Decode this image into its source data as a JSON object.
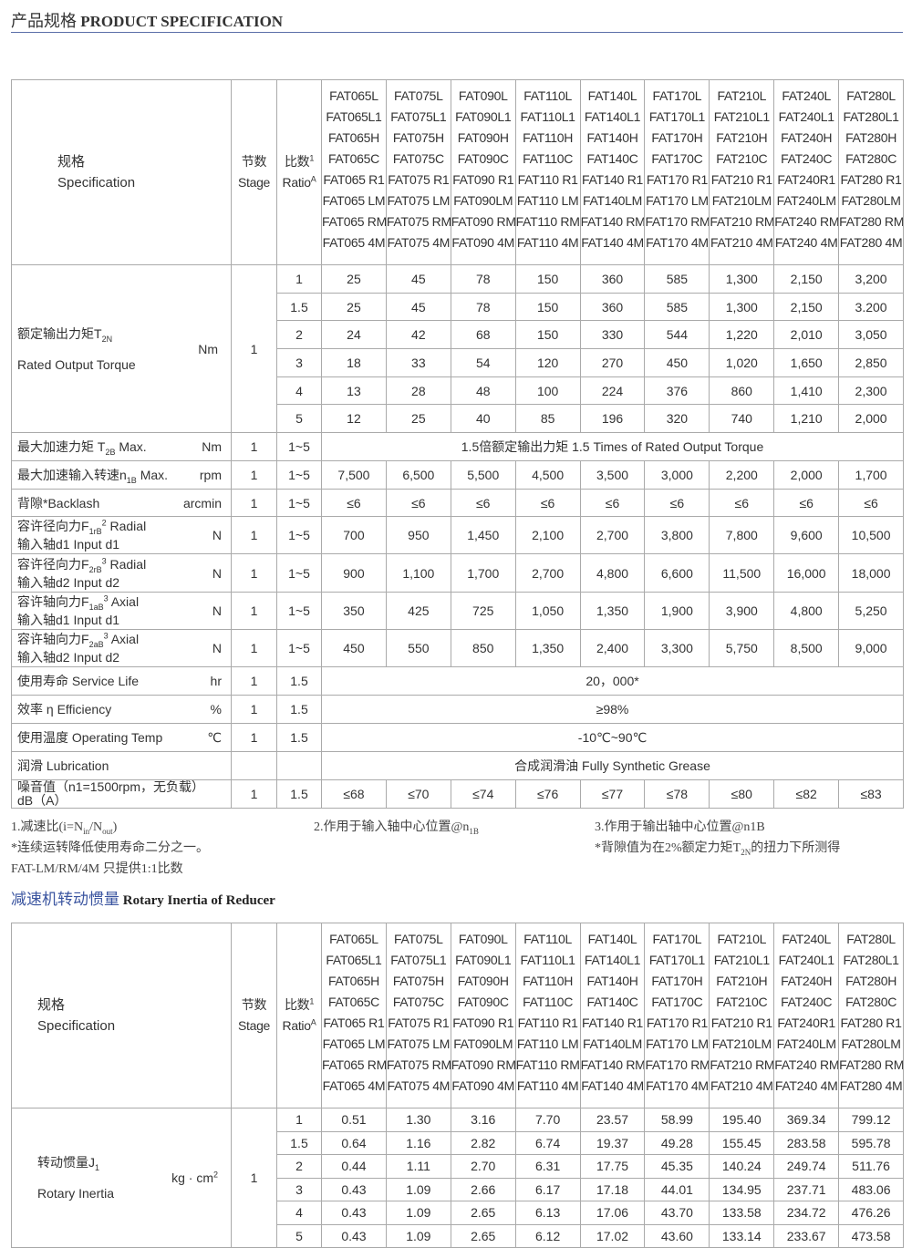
{
  "header": {
    "title_zh": "产品规格",
    "title_en": "PRODUCT SPECIFICATION"
  },
  "models": [
    [
      "FAT065L",
      "FAT065L1",
      "FAT065H",
      "FAT065C",
      "FAT065 R1",
      "FAT065 LM",
      "FAT065 RM",
      "FAT065 4M"
    ],
    [
      "FAT075L",
      "FAT075L1",
      "FAT075H",
      "FAT075C",
      "FAT075 R1",
      "FAT075 LM",
      "FAT075 RM",
      "FAT075 4M"
    ],
    [
      "FAT090L",
      "FAT090L1",
      "FAT090H",
      "FAT090C",
      "FAT090 R1",
      "FAT090LM",
      "FAT090 RM",
      "FAT090 4M"
    ],
    [
      "FAT110L",
      "FAT110L1",
      "FAT110H",
      "FAT110C",
      "FAT110 R1",
      "FAT110 LM",
      "FAT110 RM",
      "FAT110 4M"
    ],
    [
      "FAT140L",
      "FAT140L1",
      "FAT140H",
      "FAT140C",
      "FAT140 R1",
      "FAT140LM",
      "FAT140 RM",
      "FAT140 4M"
    ],
    [
      "FAT170L",
      "FAT170L1",
      "FAT170H",
      "FAT170C",
      "FAT170 R1",
      "FAT170 LM",
      "FAT170 RM",
      "FAT170 4M"
    ],
    [
      "FAT210L",
      "FAT210L1",
      "FAT210H",
      "FAT210C",
      "FAT210 R1",
      "FAT210LM",
      "FAT210 RM",
      "FAT210 4M"
    ],
    [
      "FAT240L",
      "FAT240L1",
      "FAT240H",
      "FAT240C",
      "FAT240R1",
      "FAT240LM",
      "FAT240 RM",
      "FAT240 4M"
    ],
    [
      "FAT280L",
      "FAT280L1",
      "FAT280H",
      "FAT280C",
      "FAT280 R1",
      "FAT280LM",
      "FAT280 RM",
      "FAT280 4M"
    ]
  ],
  "head": {
    "spec_zh": "规格",
    "spec_en": "Specification",
    "stage_zh": "节数",
    "stage_en": "Stage",
    "ratio_zh": "比数",
    "ratio_sup": "1",
    "ratio_en": "Ratio",
    "ratio_sup2": "A"
  },
  "torque": {
    "label": "额定输出力矩T",
    "sub": "2N",
    "label_en": "Rated Output Torque",
    "unit": "Nm",
    "stage": "1",
    "rows": [
      {
        "ratio": "1",
        "values": [
          "25",
          "45",
          "78",
          "150",
          "360",
          "585",
          "1,300",
          "2,150",
          "3,200"
        ]
      },
      {
        "ratio": "1.5",
        "values": [
          "25",
          "45",
          "78",
          "150",
          "360",
          "585",
          "1,300",
          "2,150",
          "3.200"
        ]
      },
      {
        "ratio": "2",
        "values": [
          "24",
          "42",
          "68",
          "150",
          "330",
          "544",
          "1,220",
          "2,010",
          "3,050"
        ]
      },
      {
        "ratio": "3",
        "values": [
          "18",
          "33",
          "54",
          "120",
          "270",
          "450",
          "1,020",
          "1,650",
          "2,850"
        ]
      },
      {
        "ratio": "4",
        "values": [
          "13",
          "28",
          "48",
          "100",
          "224",
          "376",
          "860",
          "1,410",
          "2,300"
        ]
      },
      {
        "ratio": "5",
        "values": [
          "12",
          "25",
          "40",
          "85",
          "196",
          "320",
          "740",
          "1,210",
          "2,000"
        ]
      }
    ]
  },
  "rows": [
    {
      "l1": "最大加速力矩 T",
      "s1": "2B",
      "l1b": " Max.",
      "unit": "Nm",
      "stage": "1",
      "ratio": "1~5",
      "span": "1.5倍额定输出力矩  1.5 Times of Rated Output Torque"
    },
    {
      "l1": "最大加速输入转速n",
      "s1": "1B",
      "l1b": " Max.",
      "unit": "rpm",
      "stage": "1",
      "ratio": "1~5",
      "values": [
        "7,500",
        "6,500",
        "5,500",
        "4,500",
        "3,500",
        "3,000",
        "2,200",
        "2,000",
        "1,700"
      ]
    },
    {
      "l1": "背隙*Backlash",
      "unit": "arcmin",
      "stage": "1",
      "ratio": "1~5",
      "values": [
        "≤6",
        "≤6",
        "≤6",
        "≤6",
        "≤6",
        "≤6",
        "≤6",
        "≤6",
        "≤6"
      ]
    },
    {
      "l1": "容许径向力F",
      "s1": "1rB",
      "p1": "2",
      "l1b": " Radial",
      "l2": "输入轴d1 Input  d1",
      "unit": "N",
      "stage": "1",
      "ratio": "1~5",
      "values": [
        "700",
        "950",
        "1,450",
        "2,100",
        "2,700",
        "3,800",
        "7,800",
        "9,600",
        "10,500"
      ]
    },
    {
      "l1": "容许径向力F",
      "s1": "2rB",
      "p1": "3",
      "l1b": " Radial",
      "l2": "输入轴d2 Input  d2",
      "unit": "N",
      "stage": "1",
      "ratio": "1~5",
      "values": [
        "900",
        "1,100",
        "1,700",
        "2,700",
        "4,800",
        "6,600",
        "11,500",
        "16,000",
        "18,000"
      ]
    },
    {
      "l1": "容许轴向力F",
      "s1": "1aB",
      "p1": "3",
      "l1b": " Axial",
      "l2": "输入轴d1 Input  d1",
      "unit": "N",
      "stage": "1",
      "ratio": "1~5",
      "values": [
        "350",
        "425",
        "725",
        "1,050",
        "1,350",
        "1,900",
        "3,900",
        "4,800",
        "5,250"
      ]
    },
    {
      "l1": "容许轴向力F",
      "s1": "2aB",
      "p1": "3",
      "l1b": " Axial",
      "l2": "输入轴d2 Input  d2",
      "unit": "N",
      "stage": "1",
      "ratio": "1~5",
      "values": [
        "450",
        "550",
        "850",
        "1,350",
        "2,400",
        "3,300",
        "5,750",
        "8,500",
        "9,000"
      ]
    },
    {
      "l1": "使用寿命 Service Life",
      "unit": "hr",
      "stage": "1",
      "ratio": "1.5",
      "span": "20，000*"
    },
    {
      "l1": "效率 η  Efficiency",
      "unit": "%",
      "stage": "1",
      "ratio": "1.5",
      "span": "≥98%"
    },
    {
      "l1": "使用温度 Operating Temp",
      "unit": "℃",
      "stage": "1",
      "ratio": "1.5",
      "span": "-10℃~90℃"
    },
    {
      "l1": "润滑 Lubrication",
      "unit": "",
      "stage": "",
      "ratio": "",
      "span": "合成润滑油 Fully Synthetic Grease"
    },
    {
      "l1": "噪音值（n1=1500rpm，无负载）",
      "l2": "dB（A）",
      "unit": "",
      "stage": "1",
      "ratio": "1.5",
      "values": [
        "≤68",
        "≤70",
        "≤74",
        "≤76",
        "≤77",
        "≤78",
        "≤80",
        "≤82",
        "≤83"
      ]
    }
  ],
  "notes": {
    "n1a": "1.减速比(i=N",
    "n1s": "in",
    "n1b": "/N",
    "n1s2": "out",
    "n1c": ")",
    "n2": "*连续运转降低使用寿命二分之一。",
    "n3": "FAT-LM/RM/4M 只提供1:1比数",
    "n4a": "2.作用于输入轴中心位置@n",
    "n4s": "1B",
    "n5": "3.作用于输出轴中心位置@n1B",
    "n6a": "*背隙值为在2%额定力矩T",
    "n6s": "2N",
    "n6b": "的扭力下所测得"
  },
  "inertia": {
    "title_zh": "减速机转动惯量",
    "title_en": "Rotary Inertia of Reducer",
    "label": "转动惯量J",
    "sub": "1",
    "label_en": "Rotary Inertia",
    "unit": "kg · cm",
    "unit_sup": "2",
    "stage": "1",
    "rows": [
      {
        "ratio": "1",
        "values": [
          "0.51",
          "1.30",
          "3.16",
          "7.70",
          "23.57",
          "58.99",
          "195.40",
          "369.34",
          "799.12"
        ]
      },
      {
        "ratio": "1.5",
        "values": [
          "0.64",
          "1.16",
          "2.82",
          "6.74",
          "19.37",
          "49.28",
          "155.45",
          "283.58",
          "595.78"
        ]
      },
      {
        "ratio": "2",
        "values": [
          "0.44",
          "1.11",
          "2.70",
          "6.31",
          "17.75",
          "45.35",
          "140.24",
          "249.74",
          "511.76"
        ]
      },
      {
        "ratio": "3",
        "values": [
          "0.43",
          "1.09",
          "2.66",
          "6.17",
          "17.18",
          "44.01",
          "134.95",
          "237.71",
          "483.06"
        ]
      },
      {
        "ratio": "4",
        "values": [
          "0.43",
          "1.09",
          "2.65",
          "6.13",
          "17.06",
          "43.70",
          "133.58",
          "234.72",
          "476.26"
        ]
      },
      {
        "ratio": "5",
        "values": [
          "0.43",
          "1.09",
          "2.65",
          "6.12",
          "17.02",
          "43.60",
          "133.14",
          "233.67",
          "473.58"
        ]
      }
    ]
  }
}
